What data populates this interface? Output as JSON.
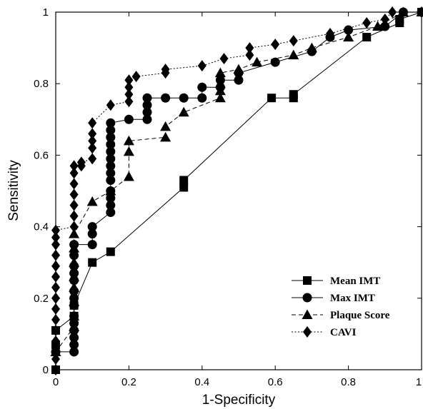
{
  "chart_data": {
    "type": "line",
    "title": "",
    "xlabel": "1-Specificity",
    "ylabel": "Sensitivity",
    "xlim": [
      0,
      1
    ],
    "ylim": [
      0,
      1
    ],
    "x_ticks": [
      "0",
      "0.2",
      "0.4",
      "0.6",
      "0.8",
      "1"
    ],
    "y_ticks": [
      "0",
      "0.2",
      "0.4",
      "0.6",
      "0.8",
      "1"
    ],
    "grid": false,
    "legend_position": "bottom-right",
    "series": [
      {
        "name": "Mean IMT",
        "marker": "square",
        "line": "solid",
        "points": [
          [
            0,
            0
          ],
          [
            0,
            0.07
          ],
          [
            0,
            0.11
          ],
          [
            0.05,
            0.15
          ],
          [
            0.05,
            0.18
          ],
          [
            0.1,
            0.3
          ],
          [
            0.15,
            0.33
          ],
          [
            0.35,
            0.51
          ],
          [
            0.35,
            0.53
          ],
          [
            0.59,
            0.76
          ],
          [
            0.65,
            0.76
          ],
          [
            0.65,
            0.77
          ],
          [
            0.85,
            0.93
          ],
          [
            0.94,
            0.97
          ],
          [
            0.94,
            0.98
          ],
          [
            1,
            1
          ]
        ]
      },
      {
        "name": "Max IMT",
        "marker": "circle",
        "line": "solid",
        "points": [
          [
            0,
            0.05
          ],
          [
            0.05,
            0.05
          ],
          [
            0.05,
            0.07
          ],
          [
            0.05,
            0.09
          ],
          [
            0.05,
            0.11
          ],
          [
            0.05,
            0.13
          ],
          [
            0.05,
            0.15
          ],
          [
            0.05,
            0.18
          ],
          [
            0.05,
            0.2
          ],
          [
            0.05,
            0.22
          ],
          [
            0.05,
            0.25
          ],
          [
            0.05,
            0.27
          ],
          [
            0.05,
            0.29
          ],
          [
            0.05,
            0.32
          ],
          [
            0.05,
            0.35
          ],
          [
            0.1,
            0.35
          ],
          [
            0.1,
            0.38
          ],
          [
            0.1,
            0.4
          ],
          [
            0.15,
            0.44
          ],
          [
            0.15,
            0.46
          ],
          [
            0.15,
            0.48
          ],
          [
            0.15,
            0.5
          ],
          [
            0.15,
            0.53
          ],
          [
            0.15,
            0.55
          ],
          [
            0.15,
            0.57
          ],
          [
            0.15,
            0.59
          ],
          [
            0.15,
            0.61
          ],
          [
            0.15,
            0.63
          ],
          [
            0.15,
            0.65
          ],
          [
            0.15,
            0.67
          ],
          [
            0.15,
            0.69
          ],
          [
            0.2,
            0.7
          ],
          [
            0.25,
            0.7
          ],
          [
            0.25,
            0.72
          ],
          [
            0.25,
            0.74
          ],
          [
            0.25,
            0.76
          ],
          [
            0.3,
            0.76
          ],
          [
            0.35,
            0.76
          ],
          [
            0.4,
            0.76
          ],
          [
            0.4,
            0.79
          ],
          [
            0.45,
            0.79
          ],
          [
            0.45,
            0.81
          ],
          [
            0.5,
            0.81
          ],
          [
            0.5,
            0.83
          ],
          [
            0.6,
            0.86
          ],
          [
            0.7,
            0.89
          ],
          [
            0.75,
            0.93
          ],
          [
            0.8,
            0.95
          ],
          [
            0.9,
            0.96
          ],
          [
            0.95,
            1.0
          ],
          [
            1,
            1
          ]
        ]
      },
      {
        "name": "Plaque Score",
        "marker": "triangle",
        "line": "dashed",
        "points": [
          [
            0,
            0.05
          ],
          [
            0.05,
            0.12
          ],
          [
            0.05,
            0.15
          ],
          [
            0.05,
            0.19
          ],
          [
            0.05,
            0.23
          ],
          [
            0.05,
            0.26
          ],
          [
            0.05,
            0.3
          ],
          [
            0.05,
            0.34
          ],
          [
            0.05,
            0.38
          ],
          [
            0.1,
            0.47
          ],
          [
            0.15,
            0.5
          ],
          [
            0.2,
            0.54
          ],
          [
            0.2,
            0.61
          ],
          [
            0.2,
            0.64
          ],
          [
            0.3,
            0.65
          ],
          [
            0.3,
            0.68
          ],
          [
            0.35,
            0.72
          ],
          [
            0.45,
            0.76
          ],
          [
            0.45,
            0.78
          ],
          [
            0.45,
            0.8
          ],
          [
            0.45,
            0.83
          ],
          [
            0.5,
            0.84
          ],
          [
            0.55,
            0.86
          ],
          [
            0.65,
            0.88
          ],
          [
            0.7,
            0.9
          ],
          [
            0.8,
            0.93
          ],
          [
            0.88,
            0.96
          ],
          [
            0.95,
            1.0
          ],
          [
            1,
            1
          ]
        ]
      },
      {
        "name": "CAVI",
        "marker": "diamond",
        "line": "dotted",
        "points": [
          [
            0,
            0
          ],
          [
            0,
            0.03
          ],
          [
            0,
            0.05
          ],
          [
            0,
            0.08
          ],
          [
            0,
            0.11
          ],
          [
            0,
            0.14
          ],
          [
            0,
            0.17
          ],
          [
            0,
            0.2
          ],
          [
            0,
            0.23
          ],
          [
            0,
            0.26
          ],
          [
            0,
            0.29
          ],
          [
            0,
            0.32
          ],
          [
            0,
            0.35
          ],
          [
            0,
            0.37
          ],
          [
            0,
            0.39
          ],
          [
            0.05,
            0.4
          ],
          [
            0.05,
            0.43
          ],
          [
            0.05,
            0.46
          ],
          [
            0.05,
            0.49
          ],
          [
            0.05,
            0.52
          ],
          [
            0.05,
            0.55
          ],
          [
            0.05,
            0.57
          ],
          [
            0.07,
            0.57
          ],
          [
            0.07,
            0.58
          ],
          [
            0.1,
            0.59
          ],
          [
            0.1,
            0.62
          ],
          [
            0.1,
            0.64
          ],
          [
            0.1,
            0.66
          ],
          [
            0.1,
            0.69
          ],
          [
            0.15,
            0.74
          ],
          [
            0.2,
            0.75
          ],
          [
            0.2,
            0.77
          ],
          [
            0.2,
            0.79
          ],
          [
            0.2,
            0.81
          ],
          [
            0.22,
            0.82
          ],
          [
            0.3,
            0.83
          ],
          [
            0.3,
            0.84
          ],
          [
            0.4,
            0.85
          ],
          [
            0.46,
            0.87
          ],
          [
            0.53,
            0.88
          ],
          [
            0.53,
            0.9
          ],
          [
            0.6,
            0.91
          ],
          [
            0.65,
            0.92
          ],
          [
            0.75,
            0.94
          ],
          [
            0.85,
            0.97
          ],
          [
            0.9,
            0.98
          ],
          [
            0.92,
            1.0
          ],
          [
            1,
            1
          ]
        ]
      }
    ]
  }
}
